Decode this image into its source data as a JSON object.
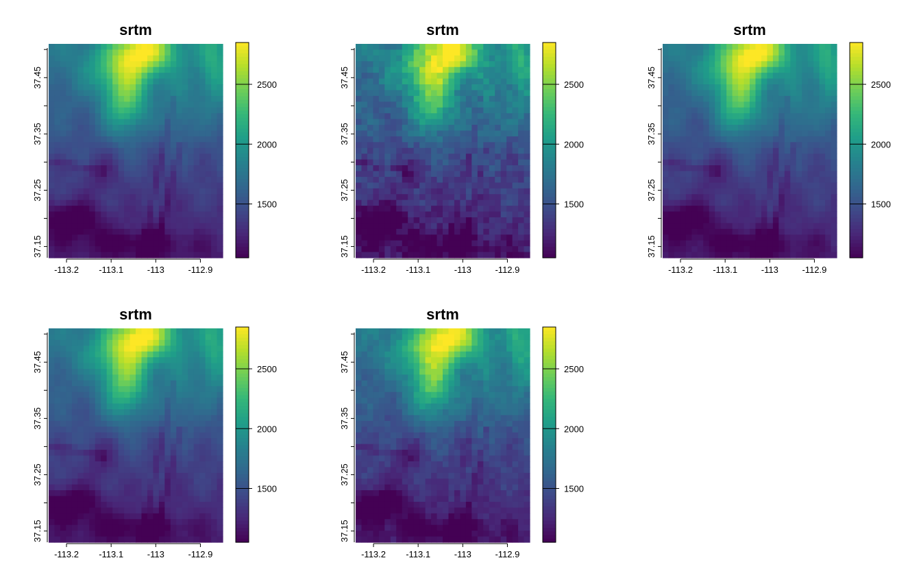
{
  "panels": [
    {
      "title": "srtm",
      "variant": "smooth",
      "legend_ticks": [
        "1500",
        "2000",
        "2500"
      ]
    },
    {
      "title": "srtm",
      "variant": "noisy",
      "legend_ticks": [
        "1500",
        "2000",
        "2500"
      ]
    },
    {
      "title": "srtm",
      "variant": "smooth",
      "legend_ticks": [
        "1500",
        "2000",
        "2500"
      ]
    },
    {
      "title": "srtm",
      "variant": "smooth",
      "legend_ticks": [
        "1500",
        "2000",
        "2500"
      ]
    },
    {
      "title": "srtm",
      "variant": "medium",
      "legend_ticks": [
        "1500",
        "2000",
        "2500"
      ]
    }
  ],
  "map": {
    "x_ticks": [
      "-113.2",
      "-113.1",
      "-113",
      "-112.9"
    ],
    "x_tick_values": [
      -113.2,
      -113.1,
      -113.0,
      -112.9
    ],
    "y_ticks": [
      "37.15",
      "37.25",
      "37.35",
      "37.45"
    ],
    "y_tick_values": [
      37.15,
      37.25,
      37.35,
      37.45
    ],
    "x_range": [
      -113.24,
      -112.85
    ],
    "y_range": [
      37.13,
      37.51
    ],
    "value_range": [
      1050,
      2850
    ],
    "legend_tick_values": [
      1500,
      2000,
      2500
    ],
    "palette": "viridis",
    "palette_colors": [
      "#440154",
      "#482878",
      "#3e4a89",
      "#31688e",
      "#26828e",
      "#1f9e89",
      "#35b779",
      "#6ece58",
      "#b5de2b",
      "#fde725"
    ]
  }
}
